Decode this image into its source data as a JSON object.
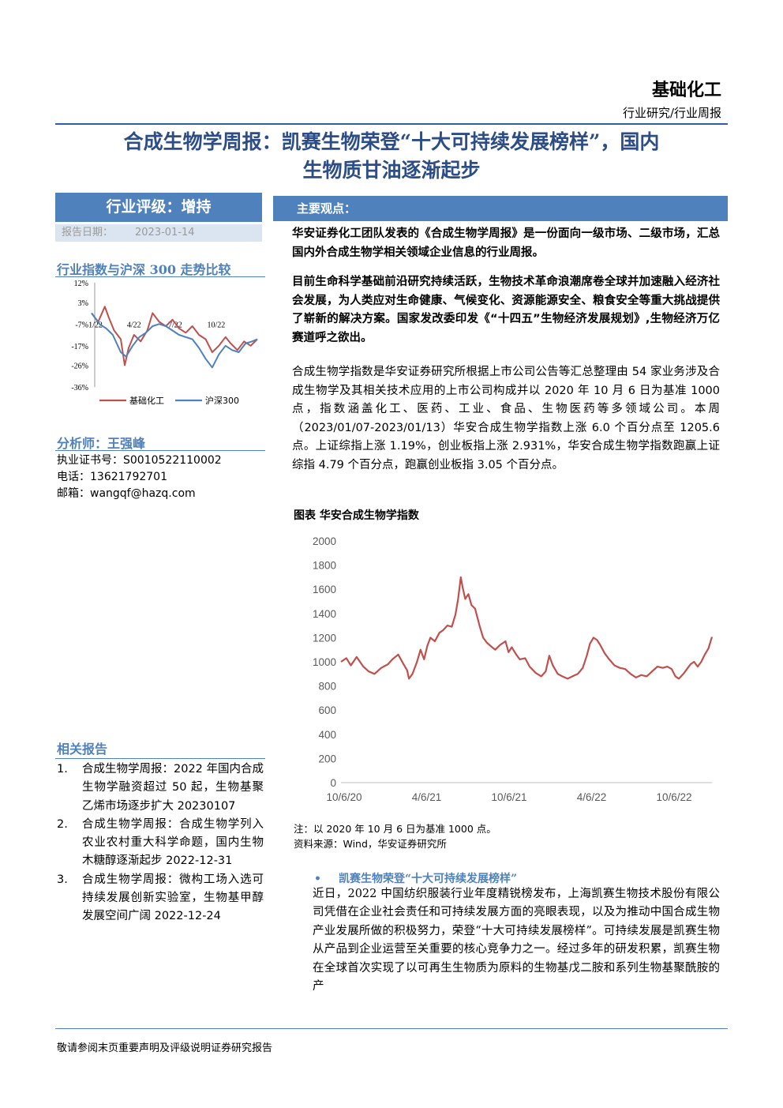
{
  "header": {
    "sector": "基础化工",
    "report_type": "行业研究/行业周报"
  },
  "title_line1": "合成生物学周报：凯赛生物荣登“十大可持续发展榜样”，国内",
  "title_line2": "生物质甘油逐渐起步",
  "rating": {
    "label": "行业评级：增持",
    "date_label": "报告日期：",
    "date": "2023-01-14"
  },
  "main_view_label": "主要观点：",
  "mini_chart_title": "行业指数与沪深 300 走势比较",
  "analyst": {
    "name_label": "分析师：王强峰",
    "cert": "执业证书号：S0010522110002",
    "phone": "电话：13621792701",
    "email": "邮箱：wangqf@hazq.com"
  },
  "related": {
    "heading": "相关报告",
    "items": [
      {
        "num": "1.",
        "text": "合成生物学周报：2022 年国内合成生物学融资超过 50 起，生物基聚乙烯市场逐步扩大 20230107"
      },
      {
        "num": "2.",
        "text": "合成生物学周报：合成生物学列入农业农村重大科学命题，国内生物木糖醇逐渐起步 2022-12-31"
      },
      {
        "num": "3.",
        "text": "合成生物学周报：微构工场入选可持续发展创新实验室，生物基甲醇发展空间广阔 2022-12-24"
      }
    ]
  },
  "paragraphs": {
    "p1": "华安证券化工团队发表的《合成生物学周报》是一份面向一级市场、二级市场，汇总国内外合成生物学相关领域企业信息的行业周报。",
    "p2": "目前生命科学基础前沿研究持续活跃，生物技术革命浪潮席卷全球并加速融入经济社会发展，为人类应对生命健康、气候变化、资源能源安全、粮食安全等重大挑战提供了崭新的解决方案。国家发改委印发《“十四五”生物经济发展规划》,生物经济万亿赛道呼之欲出。",
    "p3": "合成生物学指数是华安证券研究所根据上市公司公告等汇总整理由 54 家业务涉及合成生物学及其相关技术应用的上市公司构成并以 2020 年 10 月 6 日为基准 1000 点，指数涵盖化工、医药、工业、食品、生物医药等多领域公司。本周（2023/01/07-2023/01/13）华安合成生物学指数上涨 6.0 个百分点至 1205.6 点。上证综指上涨 1.19%，创业板指上涨 2.931%，华安合成生物学指数跑赢上证综指 4.79 个百分点，跑赢创业板指 3.05 个百分点。",
    "p4": "近日，2022 中国纺织服装行业年度精锐榜发布，上海凯赛生物技术股份有限公司凭借在企业社会责任和可持续发展方面的亮眼表现，以及为推动中国合成生物产业发展所做的积极努力，荣登“十大可持续发展榜样”。可持续发展是凯赛生物从产品到企业运营至关重要的核心竞争力之一。经过多年的研发积累，凯赛生物在全球首次实现了以可再生生物质为原料的生物基戊二胺和系列生物基聚酰胺的产"
  },
  "bullet": {
    "dot": "•",
    "text": "凯赛生物荣登“十大可持续发展榜样”"
  },
  "big_chart": {
    "title": "图表 华安合成生物学指数",
    "note": "注：以 2020 年 10 月 6 日为基准 1000 点。",
    "source": "资料来源：Wind，华安证券研究所"
  },
  "footer": "敬请参阅末页重要声明及评级说明证券研究报告",
  "chart_data": [
    {
      "type": "line",
      "title": "图表 华安合成生物学指数",
      "x_ticks": [
        "10/6/20",
        "4/6/21",
        "10/6/21",
        "4/6/22",
        "10/6/22"
      ],
      "y_ticks": [
        0,
        200,
        400,
        600,
        800,
        1000,
        1200,
        1400,
        1600,
        1800,
        2000
      ],
      "ylim": [
        0,
        2000
      ],
      "x_range_days": [
        0,
        830
      ],
      "color": "#c0504d",
      "series": [
        {
          "points": [
            [
              0,
              1000
            ],
            [
              12,
              1030
            ],
            [
              22,
              970
            ],
            [
              35,
              1040
            ],
            [
              50,
              960
            ],
            [
              62,
              920
            ],
            [
              75,
              900
            ],
            [
              90,
              950
            ],
            [
              105,
              980
            ],
            [
              115,
              1020
            ],
            [
              128,
              1060
            ],
            [
              140,
              980
            ],
            [
              148,
              930
            ],
            [
              152,
              860
            ],
            [
              160,
              900
            ],
            [
              170,
              1000
            ],
            [
              178,
              1100
            ],
            [
              186,
              1020
            ],
            [
              193,
              1130
            ],
            [
              200,
              1200
            ],
            [
              210,
              1170
            ],
            [
              220,
              1240
            ],
            [
              228,
              1260
            ],
            [
              238,
              1300
            ],
            [
              248,
              1290
            ],
            [
              256,
              1390
            ],
            [
              262,
              1520
            ],
            [
              268,
              1700
            ],
            [
              272,
              1620
            ],
            [
              278,
              1520
            ],
            [
              285,
              1560
            ],
            [
              292,
              1470
            ],
            [
              300,
              1440
            ],
            [
              310,
              1300
            ],
            [
              318,
              1200
            ],
            [
              326,
              1160
            ],
            [
              335,
              1130
            ],
            [
              345,
              1100
            ],
            [
              356,
              1140
            ],
            [
              368,
              1170
            ],
            [
              375,
              1080
            ],
            [
              382,
              1120
            ],
            [
              392,
              1060
            ],
            [
              400,
              1020
            ],
            [
              412,
              1030
            ],
            [
              422,
              960
            ],
            [
              435,
              910
            ],
            [
              448,
              880
            ],
            [
              458,
              920
            ],
            [
              466,
              1050
            ],
            [
              474,
              970
            ],
            [
              485,
              900
            ],
            [
              495,
              880
            ],
            [
              507,
              860
            ],
            [
              518,
              880
            ],
            [
              530,
              900
            ],
            [
              541,
              950
            ],
            [
              550,
              1050
            ],
            [
              557,
              1150
            ],
            [
              565,
              1200
            ],
            [
              573,
              1180
            ],
            [
              580,
              1140
            ],
            [
              590,
              1070
            ],
            [
              600,
              1020
            ],
            [
              612,
              970
            ],
            [
              624,
              950
            ],
            [
              636,
              940
            ],
            [
              648,
              900
            ],
            [
              660,
              870
            ],
            [
              672,
              890
            ],
            [
              684,
              880
            ],
            [
              696,
              920
            ],
            [
              708,
              960
            ],
            [
              720,
              950
            ],
            [
              730,
              960
            ],
            [
              740,
              940
            ],
            [
              748,
              880
            ],
            [
              756,
              860
            ],
            [
              766,
              900
            ],
            [
              774,
              940
            ],
            [
              782,
              980
            ],
            [
              790,
              1000
            ],
            [
              798,
              960
            ],
            [
              806,
              1000
            ],
            [
              814,
              1060
            ],
            [
              822,
              1110
            ],
            [
              830,
              1206
            ]
          ]
        }
      ]
    },
    {
      "type": "line",
      "title": "行业指数与沪深 300 走势比较",
      "x_ticks": [
        "1/22",
        "4/22",
        "7/22",
        "10/22"
      ],
      "y_ticks": [
        "12%",
        "3%",
        "-7%",
        "-17%",
        "-26%",
        "-36%"
      ],
      "ylim": [
        -36,
        12
      ],
      "x_range_months": [
        0,
        12.5
      ],
      "series": [
        {
          "name": "基础化工",
          "color": "#c0504d",
          "points": [
            [
              0,
              -2
            ],
            [
              0.5,
              -6
            ],
            [
              1,
              1
            ],
            [
              1.3,
              -4
            ],
            [
              1.7,
              -10
            ],
            [
              2.2,
              -14
            ],
            [
              2.5,
              -26
            ],
            [
              2.8,
              -18
            ],
            [
              3.2,
              -12
            ],
            [
              3.7,
              -15
            ],
            [
              4.2,
              -10
            ],
            [
              4.6,
              -2
            ],
            [
              5.1,
              -6
            ],
            [
              5.6,
              -8
            ],
            [
              6.1,
              -5
            ],
            [
              6.6,
              -9
            ],
            [
              7.1,
              -11
            ],
            [
              7.6,
              -8
            ],
            [
              8.1,
              -12
            ],
            [
              8.6,
              -14
            ],
            [
              9.1,
              -20
            ],
            [
              9.6,
              -17
            ],
            [
              10.1,
              -13
            ],
            [
              10.5,
              -16
            ],
            [
              11,
              -19
            ],
            [
              11.5,
              -15
            ],
            [
              12,
              -17
            ],
            [
              12.5,
              -14
            ]
          ]
        },
        {
          "name": "沪深300",
          "color": "#4f81bd",
          "points": [
            [
              0,
              -2
            ],
            [
              0.6,
              -7
            ],
            [
              1.1,
              -9
            ],
            [
              1.6,
              -12
            ],
            [
              2.2,
              -20
            ],
            [
              2.6,
              -22
            ],
            [
              3.1,
              -17
            ],
            [
              3.6,
              -13
            ],
            [
              4.1,
              -11
            ],
            [
              4.6,
              -8
            ],
            [
              5.1,
              -7
            ],
            [
              5.6,
              -8
            ],
            [
              6.1,
              -10
            ],
            [
              6.6,
              -12
            ],
            [
              7.1,
              -13
            ],
            [
              7.6,
              -14
            ],
            [
              8.1,
              -18
            ],
            [
              8.6,
              -23
            ],
            [
              9.1,
              -27
            ],
            [
              9.6,
              -21
            ],
            [
              10.1,
              -17
            ],
            [
              10.6,
              -19
            ],
            [
              11.1,
              -20
            ],
            [
              11.6,
              -16
            ],
            [
              12.1,
              -15
            ],
            [
              12.5,
              -14
            ]
          ]
        }
      ]
    }
  ]
}
